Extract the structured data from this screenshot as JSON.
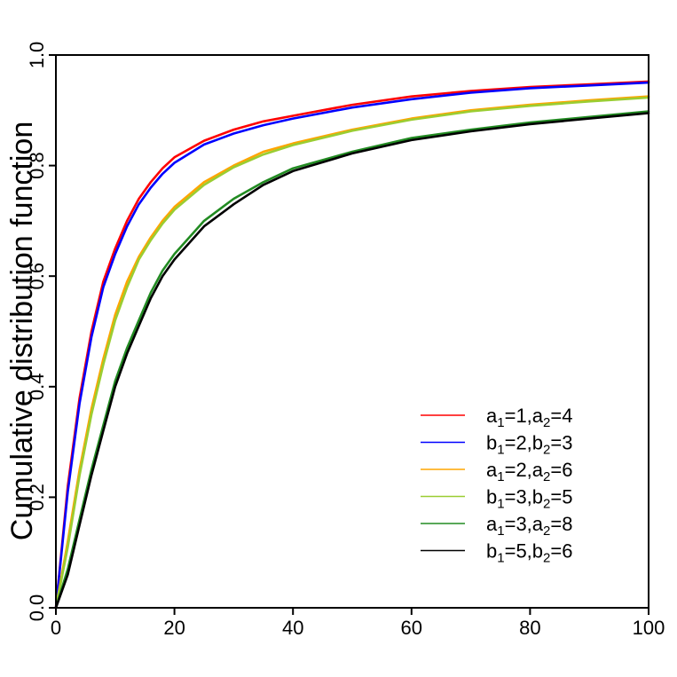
{
  "chart_data": {
    "type": "line",
    "title": "",
    "xlabel": "",
    "ylabel": "Cumulative distribution function",
    "xlim": [
      0,
      100
    ],
    "ylim": [
      0,
      1
    ],
    "x_ticks": [
      "0",
      "20",
      "40",
      "60",
      "80",
      "100"
    ],
    "y_ticks": [
      "0.0",
      "0.2",
      "0.4",
      "0.6",
      "0.8",
      "1.0"
    ],
    "grid": false,
    "legend_position": "bottom-right",
    "x": [
      0,
      2,
      4,
      6,
      8,
      10,
      12,
      14,
      16,
      18,
      20,
      25,
      30,
      35,
      40,
      50,
      60,
      70,
      80,
      90,
      100
    ],
    "series": [
      {
        "name": "a1=1,a2=4",
        "legend": {
          "v1": "a",
          "s1": "1",
          "val1": "1",
          "v2": "a",
          "s2": "2",
          "val2": "4"
        },
        "color": "#ff0000",
        "values": [
          0,
          0.22,
          0.38,
          0.5,
          0.59,
          0.65,
          0.7,
          0.74,
          0.77,
          0.795,
          0.815,
          0.845,
          0.865,
          0.88,
          0.89,
          0.91,
          0.925,
          0.935,
          0.942,
          0.947,
          0.952
        ]
      },
      {
        "name": "b1=2,b2=3",
        "legend": {
          "v1": "b",
          "s1": "1",
          "val1": "2",
          "v2": "b",
          "s2": "2",
          "val2": "3"
        },
        "color": "#0000ff",
        "values": [
          0,
          0.21,
          0.37,
          0.49,
          0.58,
          0.64,
          0.69,
          0.73,
          0.76,
          0.785,
          0.805,
          0.838,
          0.858,
          0.873,
          0.885,
          0.905,
          0.92,
          0.932,
          0.94,
          0.945,
          0.95
        ]
      },
      {
        "name": "a1=2,a2=6",
        "legend": {
          "v1": "a",
          "s1": "1",
          "val1": "2",
          "v2": "a",
          "s2": "2",
          "val2": "6"
        },
        "color": "#ffa500",
        "values": [
          0,
          0.12,
          0.25,
          0.36,
          0.45,
          0.53,
          0.59,
          0.635,
          0.67,
          0.7,
          0.725,
          0.77,
          0.8,
          0.825,
          0.84,
          0.865,
          0.885,
          0.9,
          0.91,
          0.918,
          0.925
        ]
      },
      {
        "name": "b1=3,b2=5",
        "legend": {
          "v1": "b",
          "s1": "1",
          "val1": "3",
          "v2": "b",
          "s2": "2",
          "val2": "5"
        },
        "color": "#9acd32",
        "values": [
          0,
          0.11,
          0.24,
          0.35,
          0.44,
          0.52,
          0.58,
          0.63,
          0.665,
          0.695,
          0.72,
          0.765,
          0.797,
          0.82,
          0.837,
          0.863,
          0.883,
          0.898,
          0.908,
          0.916,
          0.923
        ]
      },
      {
        "name": "a1=3,a2=8",
        "legend": {
          "v1": "a",
          "s1": "1",
          "val1": "3",
          "v2": "a",
          "s2": "2",
          "val2": "8"
        },
        "color": "#228b22",
        "values": [
          0,
          0.07,
          0.16,
          0.25,
          0.33,
          0.41,
          0.47,
          0.52,
          0.57,
          0.61,
          0.64,
          0.7,
          0.74,
          0.77,
          0.795,
          0.825,
          0.85,
          0.865,
          0.878,
          0.888,
          0.898
        ]
      },
      {
        "name": "b1=5,b2=6",
        "legend": {
          "v1": "b",
          "s1": "1",
          "val1": "5",
          "v2": "b",
          "s2": "2",
          "val2": "6"
        },
        "color": "#000000",
        "values": [
          0,
          0.06,
          0.15,
          0.24,
          0.32,
          0.4,
          0.46,
          0.51,
          0.56,
          0.6,
          0.63,
          0.69,
          0.73,
          0.765,
          0.79,
          0.822,
          0.846,
          0.862,
          0.875,
          0.885,
          0.895
        ]
      }
    ]
  }
}
